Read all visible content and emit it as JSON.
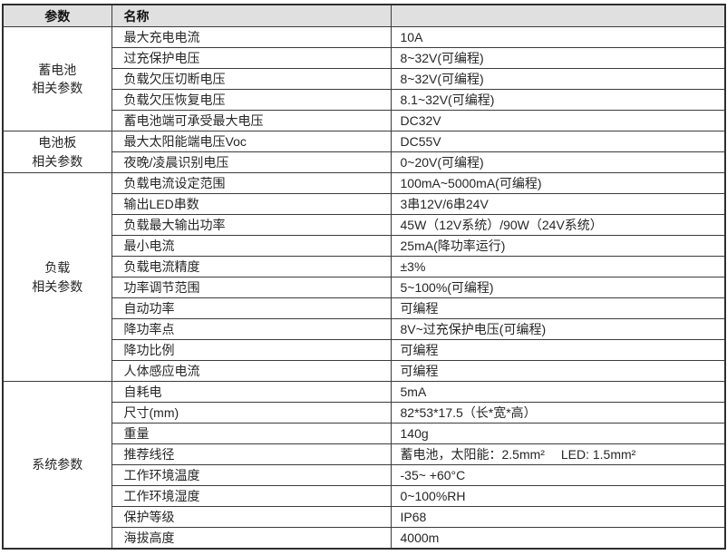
{
  "table": {
    "headers": {
      "param": "参数",
      "name": "名称",
      "value": ""
    },
    "colors": {
      "header_bg": "#e0e0e0",
      "border": "#3c3c3c",
      "text": "#262626"
    },
    "groups": [
      {
        "id": "battery",
        "label": "蓄电池\n相关参数",
        "rows": [
          {
            "name": "最大充电电流",
            "value": "10A"
          },
          {
            "name": "过充保护电压",
            "value": "8~32V(可编程)"
          },
          {
            "name": "负载欠压切断电压",
            "value": "8~32V(可编程)"
          },
          {
            "name": "负载欠压恢复电压",
            "value": "8.1~32V(可编程)"
          },
          {
            "name": "蓄电池端可承受最大电压",
            "value": "DC32V"
          }
        ]
      },
      {
        "id": "panel",
        "label": "电池板\n相关参数",
        "rows": [
          {
            "name": "最大太阳能端电压Voc",
            "value": "DC55V"
          },
          {
            "name": "夜晚/凌晨识别电压",
            "value": "0~20V(可编程)"
          }
        ]
      },
      {
        "id": "load",
        "label": "负载\n相关参数",
        "rows": [
          {
            "name": "负载电流设定范围",
            "value": "100mA~5000mA(可编程)"
          },
          {
            "name": "输出LED串数",
            "value": "3串12V/6串24V"
          },
          {
            "name": "负载最大输出功率",
            "value": "45W（12V系统）/90W（24V系统）"
          },
          {
            "name": "最小电流",
            "value": "25mA(降功率运行)"
          },
          {
            "name": "负载电流精度",
            "value": "±3%"
          },
          {
            "name": "功率调节范围",
            "value": "5~100%(可编程)"
          },
          {
            "name": "自动功率",
            "value": "可编程"
          },
          {
            "name": "降功率点",
            "value": "8V~过充保护电压(可编程)"
          },
          {
            "name": "降功比例",
            "value": "可编程"
          },
          {
            "name": "人体感应电流",
            "value": "可编程"
          }
        ]
      },
      {
        "id": "system",
        "label": "系统参数",
        "rows": [
          {
            "name": "自耗电",
            "value": "5mA"
          },
          {
            "name": "尺寸(mm)",
            "value": "82*53*17.5（长*宽*高）"
          },
          {
            "name": "重量",
            "value": "140g"
          },
          {
            "name": "推荐线径",
            "value": "蓄电池，太阳能：2.5mm²　 LED: 1.5mm²"
          },
          {
            "name": "工作环境温度",
            "value": "-35~ +60°C"
          },
          {
            "name": "工作环境湿度",
            "value": "0~100%RH"
          },
          {
            "name": "保护等级",
            "value": "IP68"
          },
          {
            "name": "海拔高度",
            "value": "4000m"
          }
        ]
      }
    ]
  }
}
